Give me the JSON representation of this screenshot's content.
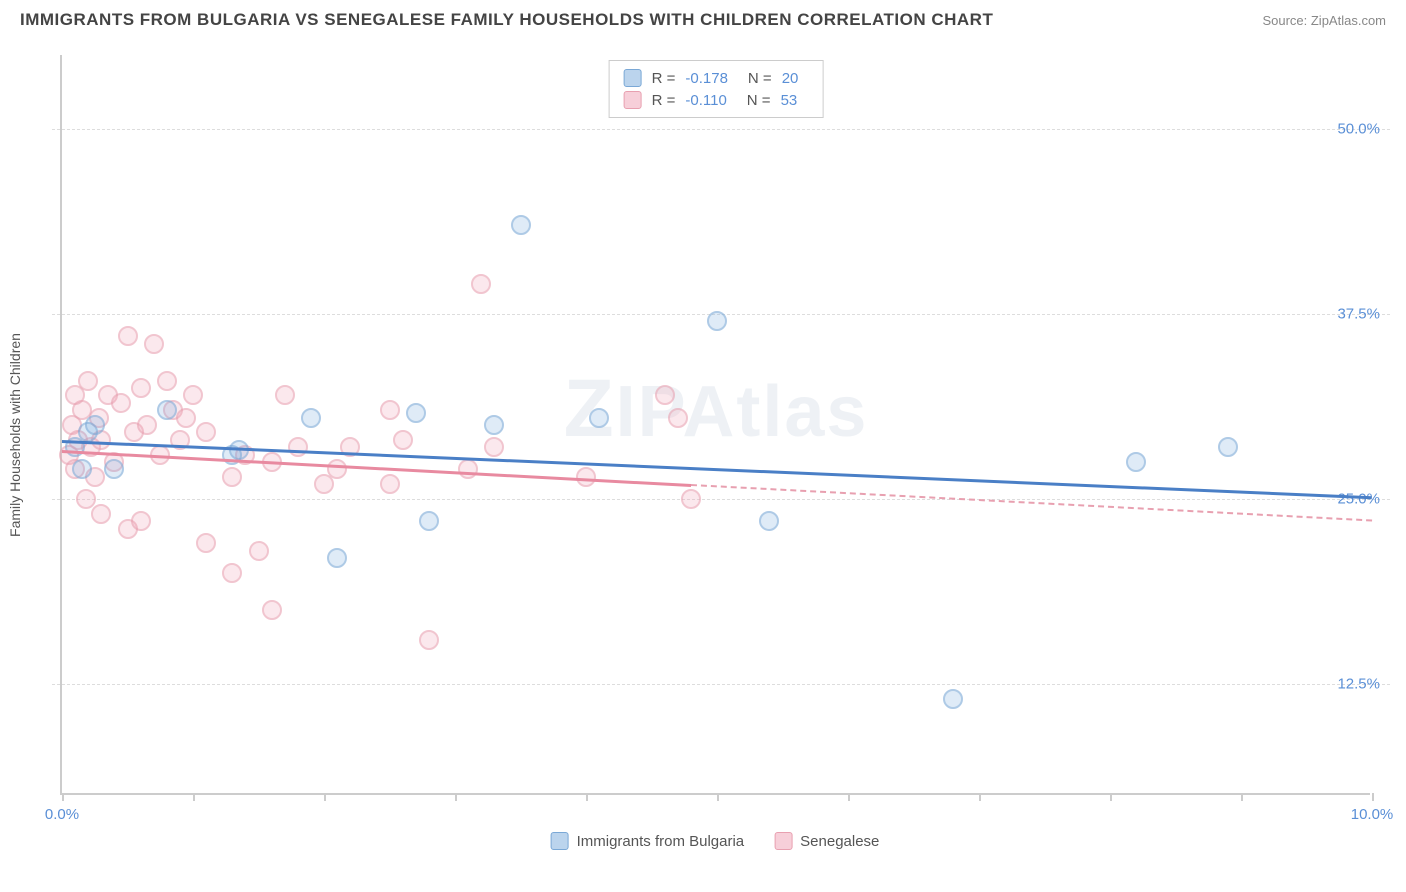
{
  "title": "IMMIGRANTS FROM BULGARIA VS SENEGALESE FAMILY HOUSEHOLDS WITH CHILDREN CORRELATION CHART",
  "source": "Source: ZipAtlas.com",
  "watermark": "ZIPAtlas",
  "y_axis_label": "Family Households with Children",
  "chart": {
    "type": "scatter",
    "xlim": [
      0,
      10
    ],
    "ylim": [
      5,
      55
    ],
    "x_ticks": [
      0,
      1,
      2,
      3,
      4,
      5,
      6,
      7,
      8,
      9,
      10
    ],
    "x_tick_labels": {
      "0": "0.0%",
      "10": "10.0%"
    },
    "y_gridlines": [
      12.5,
      25.0,
      37.5,
      50.0
    ],
    "y_tick_labels": [
      "12.5%",
      "25.0%",
      "37.5%",
      "50.0%"
    ],
    "background_color": "#ffffff",
    "grid_color": "#dddddd",
    "axis_color": "#cccccc",
    "label_color": "#5a8fd6",
    "point_radius": 10,
    "point_opacity": 0.6
  },
  "series": {
    "blue": {
      "label": "Immigrants from Bulgaria",
      "color_fill": "rgba(120,170,220,0.4)",
      "color_stroke": "#7aa8d6",
      "trend_color": "#4a7fc6",
      "R": "-0.178",
      "N": "20",
      "trend": {
        "x1": 0,
        "y1": 29.0,
        "x2": 10,
        "y2": 25.2
      },
      "points": [
        [
          0.1,
          28.5
        ],
        [
          0.15,
          27.0
        ],
        [
          0.2,
          29.5
        ],
        [
          0.25,
          30.0
        ],
        [
          0.4,
          27.0
        ],
        [
          0.8,
          31.0
        ],
        [
          1.3,
          28.0
        ],
        [
          1.35,
          28.3
        ],
        [
          1.9,
          30.5
        ],
        [
          2.1,
          21.0
        ],
        [
          2.7,
          30.8
        ],
        [
          2.8,
          23.5
        ],
        [
          3.3,
          30.0
        ],
        [
          3.5,
          43.5
        ],
        [
          5.0,
          37.0
        ],
        [
          5.4,
          23.5
        ],
        [
          6.8,
          11.5
        ],
        [
          8.2,
          27.5
        ],
        [
          8.9,
          28.5
        ],
        [
          4.1,
          30.5
        ]
      ]
    },
    "pink": {
      "label": "Senegalese",
      "color_fill": "rgba(240,160,180,0.4)",
      "color_stroke": "#e8a0b0",
      "trend_color": "#e88aa0",
      "R": "-0.110",
      "N": "53",
      "trend_solid": {
        "x1": 0,
        "y1": 28.3,
        "x2": 4.8,
        "y2": 26.0
      },
      "trend_dashed": {
        "x1": 4.8,
        "y1": 26.0,
        "x2": 10,
        "y2": 23.6
      },
      "points": [
        [
          0.05,
          28.0
        ],
        [
          0.08,
          30.0
        ],
        [
          0.1,
          27.0
        ],
        [
          0.12,
          29.0
        ],
        [
          0.15,
          31.0
        ],
        [
          0.18,
          25.0
        ],
        [
          0.2,
          33.0
        ],
        [
          0.22,
          28.5
        ],
        [
          0.25,
          26.5
        ],
        [
          0.28,
          30.5
        ],
        [
          0.3,
          29.0
        ],
        [
          0.35,
          32.0
        ],
        [
          0.4,
          27.5
        ],
        [
          0.45,
          31.5
        ],
        [
          0.5,
          36.0
        ],
        [
          0.55,
          29.5
        ],
        [
          0.6,
          32.5
        ],
        [
          0.65,
          30.0
        ],
        [
          0.7,
          35.5
        ],
        [
          0.75,
          28.0
        ],
        [
          0.5,
          23.0
        ],
        [
          0.6,
          23.5
        ],
        [
          0.8,
          33.0
        ],
        [
          0.85,
          31.0
        ],
        [
          0.9,
          29.0
        ],
        [
          0.95,
          30.5
        ],
        [
          1.0,
          32.0
        ],
        [
          1.1,
          22.0
        ],
        [
          1.1,
          29.5
        ],
        [
          1.3,
          20.0
        ],
        [
          1.3,
          26.5
        ],
        [
          1.4,
          28.0
        ],
        [
          1.5,
          21.5
        ],
        [
          1.6,
          27.5
        ],
        [
          1.6,
          17.5
        ],
        [
          1.7,
          32.0
        ],
        [
          1.8,
          28.5
        ],
        [
          2.0,
          26.0
        ],
        [
          2.2,
          28.5
        ],
        [
          2.1,
          27.0
        ],
        [
          2.5,
          31.0
        ],
        [
          2.5,
          26.0
        ],
        [
          2.6,
          29.0
        ],
        [
          2.8,
          15.5
        ],
        [
          3.1,
          27.0
        ],
        [
          3.2,
          39.5
        ],
        [
          3.3,
          28.5
        ],
        [
          4.0,
          26.5
        ],
        [
          4.6,
          32.0
        ],
        [
          4.8,
          25.0
        ],
        [
          4.7,
          30.5
        ],
        [
          0.3,
          24.0
        ],
        [
          0.1,
          32.0
        ]
      ]
    }
  },
  "stats_labels": {
    "R": "R =",
    "N": "N ="
  }
}
